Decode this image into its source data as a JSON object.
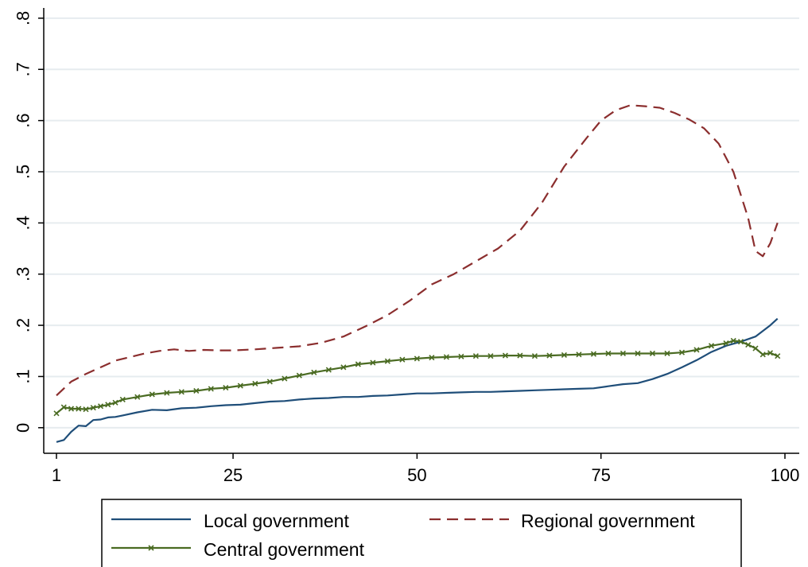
{
  "chart_data": {
    "type": "line",
    "title": "",
    "xlabel": "",
    "ylabel": "",
    "xlim": [
      1,
      100
    ],
    "ylim": [
      -0.05,
      0.82
    ],
    "xticks": [
      1,
      25,
      50,
      75,
      100
    ],
    "xtick_labels": [
      "1",
      "25",
      "50",
      "75",
      "100"
    ],
    "yticks": [
      0,
      0.1,
      0.2,
      0.3,
      0.4,
      0.5,
      0.6,
      0.7,
      0.8
    ],
    "ytick_labels": [
      "0",
      ".1",
      ".2",
      ".3",
      ".4",
      ".5",
      ".6",
      ".7",
      ".8"
    ],
    "grid": true,
    "legend_position": "bottom",
    "series": [
      {
        "name": "Local government",
        "color": "#1f4e79",
        "style": "solid",
        "x": [
          1,
          2,
          3,
          4,
          5,
          6,
          7,
          8,
          9,
          10,
          12,
          14,
          16,
          18,
          20,
          22,
          24,
          26,
          28,
          30,
          32,
          34,
          36,
          38,
          40,
          42,
          44,
          46,
          48,
          50,
          52,
          54,
          56,
          58,
          60,
          62,
          64,
          66,
          68,
          70,
          72,
          74,
          76,
          78,
          80,
          82,
          84,
          86,
          88,
          90,
          92,
          94,
          96,
          98,
          99
        ],
        "y": [
          -0.028,
          -0.024,
          -0.008,
          0.004,
          0.003,
          0.015,
          0.016,
          0.02,
          0.021,
          0.024,
          0.03,
          0.035,
          0.034,
          0.038,
          0.039,
          0.042,
          0.044,
          0.045,
          0.048,
          0.051,
          0.052,
          0.055,
          0.057,
          0.058,
          0.06,
          0.06,
          0.062,
          0.063,
          0.065,
          0.067,
          0.067,
          0.068,
          0.069,
          0.07,
          0.07,
          0.071,
          0.072,
          0.073,
          0.074,
          0.075,
          0.076,
          0.077,
          0.081,
          0.085,
          0.087,
          0.095,
          0.105,
          0.118,
          0.132,
          0.148,
          0.16,
          0.168,
          0.178,
          0.2,
          0.213
        ]
      },
      {
        "name": "Regional government",
        "color": "#8b2e2e",
        "style": "dashed",
        "x": [
          1,
          3,
          5,
          7,
          9,
          11,
          13,
          15,
          17,
          19,
          21,
          23,
          25,
          28,
          31,
          34,
          37,
          40,
          43,
          46,
          49,
          52,
          55,
          58,
          61,
          64,
          67,
          70,
          73,
          75,
          77,
          79,
          81,
          83,
          85,
          87,
          89,
          91,
          93,
          95,
          96,
          97,
          98,
          99
        ],
        "y": [
          0.063,
          0.09,
          0.105,
          0.118,
          0.131,
          0.138,
          0.145,
          0.15,
          0.153,
          0.15,
          0.152,
          0.151,
          0.151,
          0.153,
          0.156,
          0.159,
          0.166,
          0.178,
          0.198,
          0.22,
          0.248,
          0.28,
          0.3,
          0.325,
          0.35,
          0.385,
          0.44,
          0.51,
          0.565,
          0.6,
          0.62,
          0.63,
          0.628,
          0.625,
          0.615,
          0.602,
          0.585,
          0.555,
          0.5,
          0.41,
          0.345,
          0.335,
          0.36,
          0.4
        ]
      },
      {
        "name": "Central government",
        "color": "#4a6b22",
        "style": "solid-marker",
        "x": [
          1,
          2,
          3,
          4,
          5,
          6,
          7,
          8,
          9,
          10,
          12,
          14,
          16,
          18,
          20,
          22,
          24,
          26,
          28,
          30,
          32,
          34,
          36,
          38,
          40,
          42,
          44,
          46,
          48,
          50,
          52,
          54,
          56,
          58,
          60,
          62,
          64,
          66,
          68,
          70,
          72,
          74,
          76,
          78,
          80,
          82,
          84,
          86,
          88,
          90,
          92,
          93,
          94,
          95,
          96,
          97,
          98,
          99
        ],
        "y": [
          0.028,
          0.04,
          0.037,
          0.037,
          0.036,
          0.039,
          0.042,
          0.045,
          0.049,
          0.055,
          0.06,
          0.065,
          0.068,
          0.07,
          0.072,
          0.076,
          0.078,
          0.082,
          0.086,
          0.09,
          0.096,
          0.102,
          0.108,
          0.113,
          0.118,
          0.124,
          0.127,
          0.13,
          0.133,
          0.135,
          0.137,
          0.138,
          0.139,
          0.14,
          0.14,
          0.141,
          0.141,
          0.14,
          0.141,
          0.142,
          0.143,
          0.144,
          0.145,
          0.145,
          0.145,
          0.145,
          0.145,
          0.147,
          0.152,
          0.16,
          0.165,
          0.17,
          0.168,
          0.162,
          0.155,
          0.143,
          0.146,
          0.14
        ]
      }
    ]
  }
}
